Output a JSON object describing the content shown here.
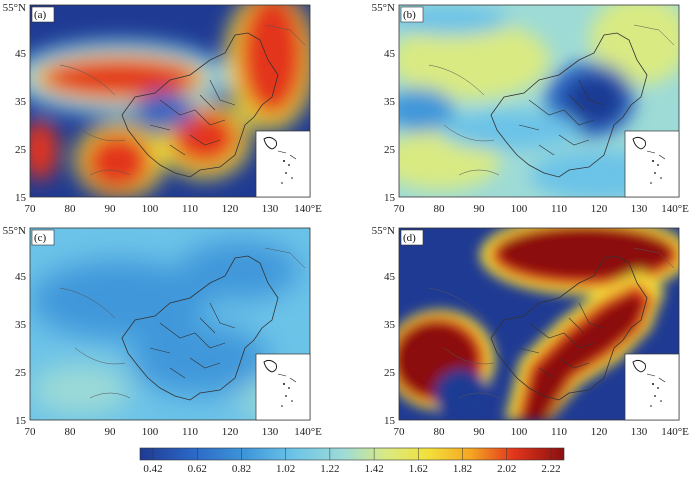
{
  "figure": {
    "panels": [
      {
        "id": "a",
        "label": "(a)",
        "lat_ticks": [
          "15",
          "25",
          "35",
          "45",
          "55°N"
        ],
        "lon_ticks": [
          "70",
          "80",
          "90",
          "100",
          "110",
          "120",
          "130",
          "140°E"
        ]
      },
      {
        "id": "b",
        "label": "(b)",
        "lat_ticks": [
          "15",
          "25",
          "35",
          "45",
          "55°N"
        ],
        "lon_ticks": [
          "70",
          "80",
          "90",
          "100",
          "110",
          "120",
          "130",
          "140°E"
        ]
      },
      {
        "id": "c",
        "label": "(c)",
        "lat_ticks": [
          "15",
          "25",
          "35",
          "45",
          "55°N"
        ],
        "lon_ticks": [
          "70",
          "80",
          "90",
          "100",
          "110",
          "120",
          "130",
          "140°E"
        ]
      },
      {
        "id": "d",
        "label": "(d)",
        "lat_ticks": [
          "15",
          "25",
          "35",
          "45",
          "55°N"
        ],
        "lon_ticks": [
          "70",
          "80",
          "90",
          "100",
          "110",
          "120",
          "130",
          "140°E"
        ]
      }
    ],
    "colorbar": {
      "ticks": [
        "0.42",
        "0.62",
        "0.82",
        "1.02",
        "1.22",
        "1.42",
        "1.62",
        "1.82",
        "2.02",
        "2.22"
      ],
      "colors": [
        "#1f3a93",
        "#2a66c4",
        "#3f97da",
        "#6cc3e8",
        "#9edbd6",
        "#d9ea83",
        "#f2e03a",
        "#f5a623",
        "#e3361c",
        "#8b0f0f"
      ]
    }
  },
  "colors": {
    "low": "#1f3a93",
    "mid": "#6cc3e8",
    "high": "#e3361c",
    "extreme": "#8b0f0f"
  }
}
